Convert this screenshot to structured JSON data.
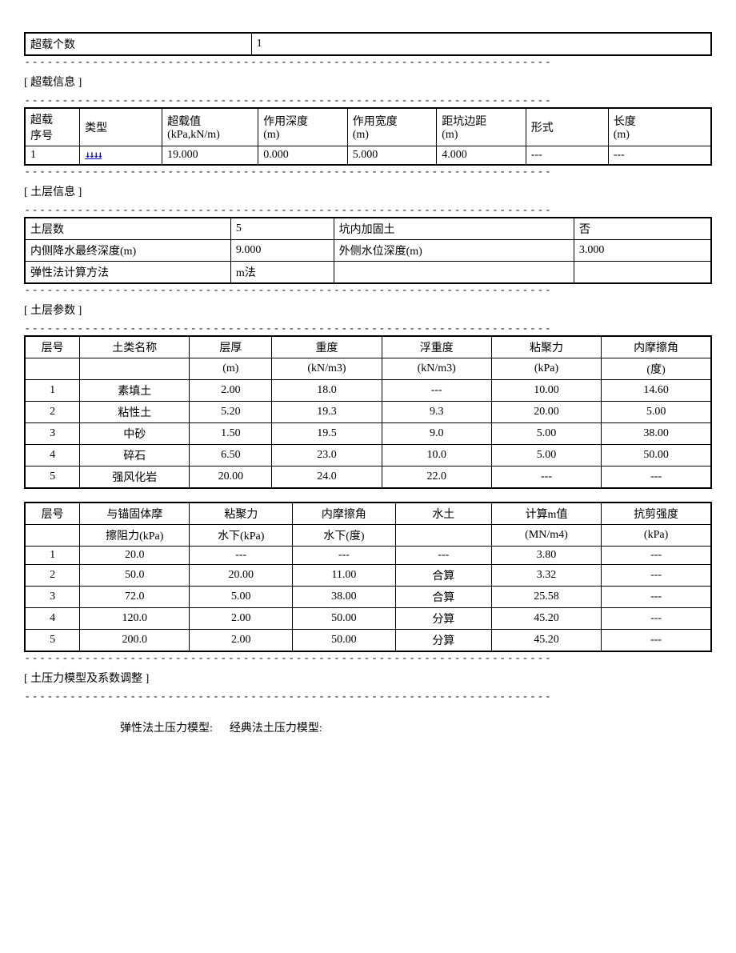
{
  "overload_count": {
    "label": "超载个数",
    "value": "1"
  },
  "overload_section": {
    "title": "[ 超载信息 ]",
    "headers": [
      "超载序号",
      "类型",
      "超载值(kPa,kN/m)",
      "作用深度(m)",
      "作用宽度(m)",
      "距坑边距(m)",
      "形式",
      "长度(m)"
    ],
    "row": {
      "seq": "1",
      "type_icon": "↓↓↓↓",
      "value": "19.000",
      "depth": "0.000",
      "width": "5.000",
      "dist": "4.000",
      "form": "---",
      "length": "---"
    }
  },
  "soil_info_section": {
    "title": "[ 土层信息 ]",
    "rows": [
      {
        "l1": "土层数",
        "v1": "5",
        "l2": "坑内加固土",
        "v2": "否"
      },
      {
        "l1": "内侧降水最终深度(m)",
        "v1": "9.000",
        "l2": "外侧水位深度(m)",
        "v2": "3.000"
      },
      {
        "l1": "弹性法计算方法",
        "v1": "m法",
        "l2": "",
        "v2": ""
      }
    ]
  },
  "soil_params_section": {
    "title": "[ 土层参数 ]",
    "table1": {
      "headers_row1": [
        "层号",
        "土类名称",
        "层厚",
        "重度",
        "浮重度",
        "粘聚力",
        "内摩擦角"
      ],
      "headers_row2": [
        "",
        "",
        "(m)",
        "(kN/m3)",
        "(kN/m3)",
        "(kPa)",
        "(度)"
      ],
      "rows": [
        [
          "1",
          "素填土",
          "2.00",
          "18.0",
          "---",
          "10.00",
          "14.60"
        ],
        [
          "2",
          "粘性土",
          "5.20",
          "19.3",
          "9.3",
          "20.00",
          "5.00"
        ],
        [
          "3",
          "中砂",
          "1.50",
          "19.5",
          "9.0",
          "5.00",
          "38.00"
        ],
        [
          "4",
          "碎石",
          "6.50",
          "23.0",
          "10.0",
          "5.00",
          "50.00"
        ],
        [
          "5",
          "强风化岩",
          "20.00",
          "24.0",
          "22.0",
          "---",
          "---"
        ]
      ]
    },
    "table2": {
      "headers_row1": [
        "层号",
        "与锚固体摩",
        "粘聚力",
        "内摩擦角",
        "水土",
        "计算m值",
        "抗剪强度"
      ],
      "headers_row2": [
        "",
        "擦阻力(kPa)",
        "水下(kPa)",
        "水下(度)",
        "",
        "(MN/m4)",
        "(kPa)"
      ],
      "rows": [
        [
          "1",
          "20.0",
          "---",
          "---",
          "---",
          "3.80",
          "---"
        ],
        [
          "2",
          "50.0",
          "20.00",
          "11.00",
          "合算",
          "3.32",
          "---"
        ],
        [
          "3",
          "72.0",
          "5.00",
          "38.00",
          "合算",
          "25.58",
          "---"
        ],
        [
          "4",
          "120.0",
          "2.00",
          "50.00",
          "分算",
          "45.20",
          "---"
        ],
        [
          "5",
          "200.0",
          "2.00",
          "50.00",
          "分算",
          "45.20",
          "---"
        ]
      ]
    }
  },
  "pressure_section": {
    "title": "[ 土压力模型及系数调整 ]",
    "text1": "弹性法土压力模型:",
    "text2": "经典法土压力模型:"
  },
  "styling": {
    "border_color": "#000000",
    "bg_color": "#ffffff",
    "text_color": "#000000",
    "font_size": 14,
    "arrow_color": "#0000cc",
    "watermark_color": "rgba(200,200,200,0.5)"
  }
}
